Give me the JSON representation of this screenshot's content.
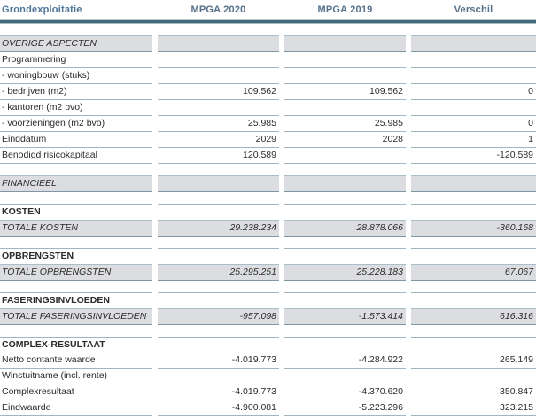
{
  "header": {
    "title": "Grondexploitatie",
    "col_2020": "MPGA 2020",
    "col_2019": "MPGA 2019",
    "col_diff": "Verschil"
  },
  "colors": {
    "title_text": "#4d7699",
    "column_header_text": "#55708a",
    "header_rule": "#42697a",
    "band_background": "#dcdde1",
    "row_line": "#9db6c2",
    "band_line_bottom": "#7d98a3",
    "body_text": "#2b2b2b"
  },
  "rows": [
    {
      "type": "band",
      "label": "OVERIGE ASPECTEN",
      "v2020": "",
      "v2019": "",
      "diff": ""
    },
    {
      "type": "row",
      "label": "Programmering",
      "v2020": "",
      "v2019": "",
      "diff": ""
    },
    {
      "type": "row",
      "label": "- woningbouw (stuks)",
      "v2020": "",
      "v2019": "",
      "diff": ""
    },
    {
      "type": "row",
      "label": "- bedrijven (m2)",
      "v2020": "109.562",
      "v2019": "109.562",
      "diff": "0"
    },
    {
      "type": "row",
      "label": "- kantoren (m2 bvo)",
      "v2020": "",
      "v2019": "",
      "diff": ""
    },
    {
      "type": "row",
      "label": "- voorzieningen (m2 bvo)",
      "v2020": "25.985",
      "v2019": "25.985",
      "diff": "0"
    },
    {
      "type": "row",
      "label": "Einddatum",
      "v2020": "2029",
      "v2019": "2028",
      "diff": "1"
    },
    {
      "type": "row",
      "label": "Benodigd risicokapitaal",
      "v2020": "120.589",
      "v2019": "",
      "diff": "-120.589"
    },
    {
      "type": "spacer"
    },
    {
      "type": "band",
      "label": "FINANCIEEL",
      "v2020": "",
      "v2019": "",
      "diff": ""
    },
    {
      "type": "spacer"
    },
    {
      "type": "header",
      "label": "KOSTEN"
    },
    {
      "type": "band",
      "label": "TOTALE KOSTEN",
      "v2020": "29.238.234",
      "v2019": "28.878.066",
      "diff": "-360.168"
    },
    {
      "type": "spacer"
    },
    {
      "type": "header",
      "label": "OPBRENGSTEN"
    },
    {
      "type": "band",
      "label": "TOTALE OPBRENGSTEN",
      "v2020": "25.295.251",
      "v2019": "25.228.183",
      "diff": "67.067"
    },
    {
      "type": "spacer"
    },
    {
      "type": "header",
      "label": "FASERINGSINVLOEDEN"
    },
    {
      "type": "band",
      "label": "TOTALE FASERINGSINVLOEDEN",
      "v2020": "-957.098",
      "v2019": "-1.573.414",
      "diff": "616.316"
    },
    {
      "type": "spacer"
    },
    {
      "type": "header",
      "label": "COMPLEX-RESULTAAT"
    },
    {
      "type": "row",
      "label": "Netto contante waarde",
      "v2020": "-4.019.773",
      "v2019": "-4.284.922",
      "diff": "265.149"
    },
    {
      "type": "row",
      "label": "Winstuitname (incl. rente)",
      "v2020": "",
      "v2019": "",
      "diff": ""
    },
    {
      "type": "row",
      "label": "Complexresultaat",
      "v2020": "-4.019.773",
      "v2019": "-4.370.620",
      "diff": "350.847"
    },
    {
      "type": "row",
      "label": "Eindwaarde",
      "v2020": "-4.900.081",
      "v2019": "-5.223.296",
      "diff": "323.215"
    }
  ]
}
